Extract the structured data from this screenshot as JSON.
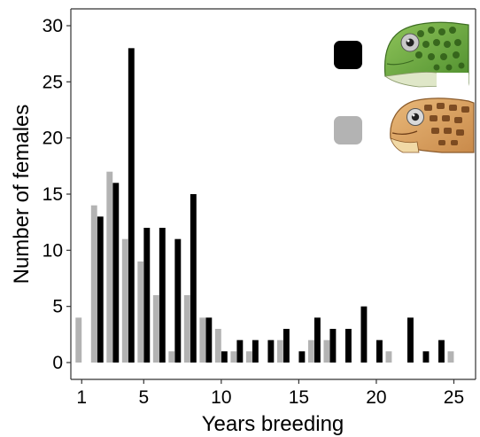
{
  "chart_data": {
    "type": "bar",
    "xlabel": "Years breeding",
    "ylabel": "Number of females",
    "xlim": [
      0.3,
      26.4
    ],
    "ylim": [
      -1.5,
      31.5
    ],
    "xticks": [
      "1",
      "5",
      "10",
      "15",
      "20",
      "25"
    ],
    "yticks": [
      "0",
      "5",
      "10",
      "15",
      "20",
      "25",
      "30"
    ],
    "grid": false,
    "legend": "top-right",
    "colors": {
      "series_black": "#000000",
      "series_grey": "#b3b3b3",
      "axis": "#333333"
    },
    "series": [
      {
        "color": "#000000",
        "legend_icon": "green-turtle-head-icon",
        "x": [
          1,
          2,
          3,
          4,
          5,
          6,
          7,
          8,
          9,
          10,
          11,
          12,
          13,
          14,
          15,
          16,
          17,
          18,
          19,
          20,
          21,
          22,
          23,
          24,
          25
        ],
        "values": [
          0,
          13,
          16,
          28,
          12,
          12,
          11,
          15,
          4,
          1,
          2,
          2,
          2,
          3,
          1,
          4,
          3,
          3,
          5,
          2,
          0,
          4,
          1,
          2,
          0
        ]
      },
      {
        "color": "#b3b3b3",
        "legend_icon": "loggerhead-turtle-head-icon",
        "x": [
          1,
          2,
          3,
          4,
          5,
          6,
          7,
          8,
          9,
          10,
          11,
          12,
          13,
          14,
          15,
          16,
          17,
          18,
          19,
          20,
          21,
          22,
          23,
          24,
          25
        ],
        "values": [
          4,
          14,
          17,
          11,
          9,
          6,
          1,
          6,
          4,
          3,
          1,
          1,
          0,
          2,
          0,
          2,
          2,
          0,
          0,
          0,
          1,
          0,
          0,
          0,
          1
        ]
      }
    ]
  }
}
